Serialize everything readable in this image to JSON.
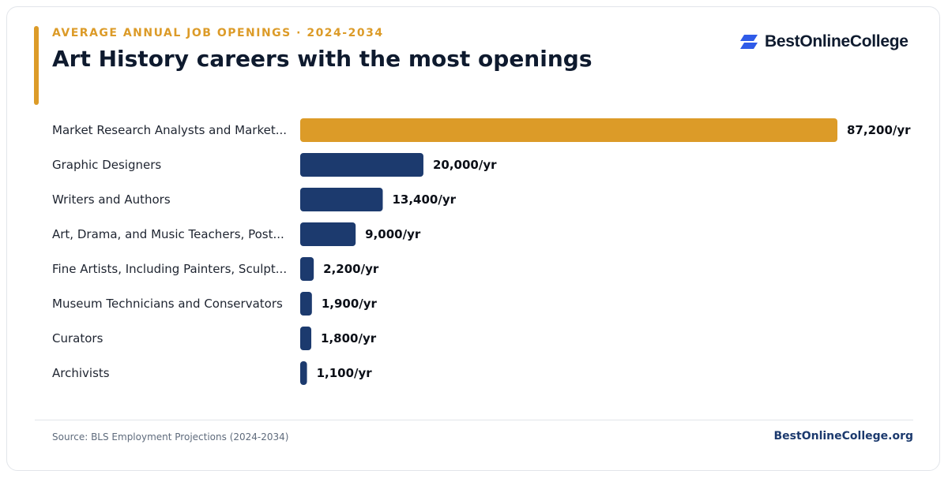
{
  "header": {
    "eyebrow": "AVERAGE ANNUAL JOB OPENINGS · 2024-2034",
    "title": "Art History careers with the most openings"
  },
  "brand": {
    "logo_text": "BestOnlineCollege",
    "logo_icon": "stacked-parallelogram-icon",
    "logo_color": "#2f5be8"
  },
  "colors": {
    "highlight": "#dc9b28",
    "bar": "#1c3a6e",
    "accent": "#dc9b28",
    "label": "#1e2430",
    "value": "#0b0f17"
  },
  "chart_data": {
    "type": "bar",
    "orientation": "horizontal",
    "categories": [
      "Market Research Analysts and Market...",
      "Graphic Designers",
      "Writers and Authors",
      "Art, Drama, and Music Teachers, Post...",
      "Fine Artists, Including Painters, Sculpt...",
      "Museum Technicians and Conservators",
      "Curators",
      "Archivists"
    ],
    "values": [
      87200,
      20000,
      13400,
      9000,
      2200,
      1900,
      1800,
      1100
    ],
    "value_labels": [
      "87,200/yr",
      "20,000/yr",
      "13,400/yr",
      "9,000/yr",
      "2,200/yr",
      "1,900/yr",
      "1,800/yr",
      "1,100/yr"
    ],
    "highlighted_index": 0,
    "xlim": [
      0,
      87200
    ],
    "grid": false,
    "legend": "none"
  },
  "footer": {
    "source": "Source: BLS Employment Projections (2024-2034)",
    "brand": "BestOnlineCollege.org"
  }
}
